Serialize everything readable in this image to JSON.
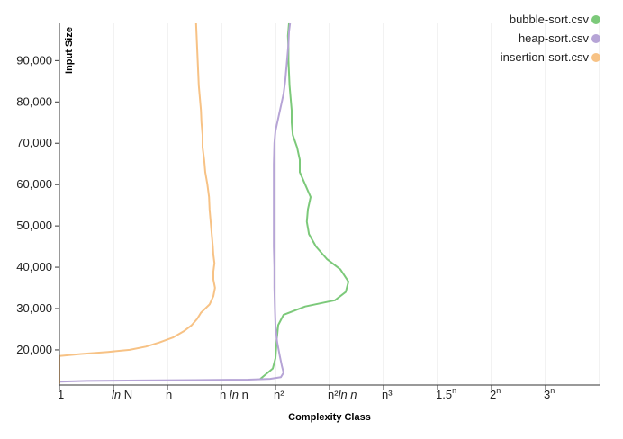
{
  "chart_data": {
    "type": "line",
    "xlabel": "Complexity Class",
    "ylabel": "Input Size",
    "x_categories": [
      {
        "pre": "",
        "em": "",
        "post": "1",
        "sup": ""
      },
      {
        "pre": "",
        "em": "ln",
        "post": " N",
        "sup": ""
      },
      {
        "pre": "",
        "em": "",
        "post": "n",
        "sup": ""
      },
      {
        "pre": "n ",
        "em": "ln",
        "post": " n",
        "sup": ""
      },
      {
        "pre": "",
        "em": "",
        "post": "n²",
        "sup": ""
      },
      {
        "pre": "n²",
        "em": "ln n",
        "post": "",
        "sup": ""
      },
      {
        "pre": "",
        "em": "",
        "post": "n³",
        "sup": ""
      },
      {
        "pre": "",
        "em": "",
        "post": "1.5",
        "sup": "n"
      },
      {
        "pre": "",
        "em": "",
        "post": "2",
        "sup": "n"
      },
      {
        "pre": "",
        "em": "",
        "post": "3",
        "sup": "n"
      }
    ],
    "x_domain": [
      0,
      10
    ],
    "ylim": [
      11500,
      99000
    ],
    "y_ticks": [
      20000,
      30000,
      40000,
      50000,
      60000,
      70000,
      80000,
      90000
    ],
    "y_tick_labels": [
      "20,000",
      "30,000",
      "40,000",
      "50,000",
      "60,000",
      "70,000",
      "80,000",
      "90,000"
    ],
    "grid": "vertical",
    "legend_position": "top-right",
    "series": [
      {
        "name": "bubble-sort.csv",
        "color": "#7cc97a",
        "points": [
          [
            3.72,
            13000
          ],
          [
            3.95,
            15500
          ],
          [
            4.0,
            18000
          ],
          [
            4.02,
            22000
          ],
          [
            4.05,
            26000
          ],
          [
            4.15,
            28500
          ],
          [
            4.55,
            30500
          ],
          [
            5.1,
            32000
          ],
          [
            5.3,
            34000
          ],
          [
            5.35,
            36500
          ],
          [
            5.2,
            39500
          ],
          [
            4.95,
            42000
          ],
          [
            4.75,
            45000
          ],
          [
            4.62,
            48000
          ],
          [
            4.58,
            51000
          ],
          [
            4.6,
            54000
          ],
          [
            4.65,
            57000
          ],
          [
            4.55,
            60000
          ],
          [
            4.45,
            63000
          ],
          [
            4.45,
            66000
          ],
          [
            4.4,
            69000
          ],
          [
            4.32,
            72000
          ],
          [
            4.3,
            75000
          ],
          [
            4.3,
            78000
          ],
          [
            4.28,
            81000
          ],
          [
            4.26,
            84000
          ],
          [
            4.25,
            87000
          ],
          [
            4.24,
            90000
          ],
          [
            4.24,
            93000
          ],
          [
            4.23,
            96000
          ],
          [
            4.25,
            99000
          ]
        ]
      },
      {
        "name": "heap-sort.csv",
        "color": "#b6a4d6",
        "points": [
          [
            0.0,
            12300
          ],
          [
            0.5,
            12500
          ],
          [
            1.5,
            12600
          ],
          [
            2.5,
            12700
          ],
          [
            3.5,
            12800
          ],
          [
            3.9,
            13000
          ],
          [
            4.1,
            13400
          ],
          [
            4.15,
            14500
          ],
          [
            4.12,
            16000
          ],
          [
            4.08,
            18500
          ],
          [
            4.03,
            22000
          ],
          [
            4.0,
            26000
          ],
          [
            3.99,
            30000
          ],
          [
            3.98,
            35000
          ],
          [
            3.98,
            40000
          ],
          [
            3.97,
            45000
          ],
          [
            3.97,
            50000
          ],
          [
            3.97,
            55000
          ],
          [
            3.97,
            60000
          ],
          [
            3.97,
            65000
          ],
          [
            3.98,
            70000
          ],
          [
            4.0,
            73000
          ],
          [
            4.05,
            76000
          ],
          [
            4.1,
            79000
          ],
          [
            4.15,
            82000
          ],
          [
            4.18,
            85000
          ],
          [
            4.2,
            88000
          ],
          [
            4.22,
            91000
          ],
          [
            4.24,
            94000
          ],
          [
            4.25,
            97000
          ],
          [
            4.27,
            99000
          ]
        ]
      },
      {
        "name": "insertion-sort.csv",
        "color": "#f7c285",
        "points": [
          [
            0.0,
            11800
          ],
          [
            0.0,
            18500
          ],
          [
            0.4,
            19000
          ],
          [
            0.9,
            19500
          ],
          [
            1.3,
            20000
          ],
          [
            1.6,
            20800
          ],
          [
            1.85,
            21800
          ],
          [
            2.1,
            23000
          ],
          [
            2.3,
            24500
          ],
          [
            2.45,
            26000
          ],
          [
            2.55,
            27500
          ],
          [
            2.62,
            29000
          ],
          [
            2.78,
            31000
          ],
          [
            2.85,
            33000
          ],
          [
            2.88,
            35000
          ],
          [
            2.85,
            37000
          ],
          [
            2.85,
            39000
          ],
          [
            2.87,
            41000
          ],
          [
            2.85,
            43000
          ],
          [
            2.84,
            45000
          ],
          [
            2.82,
            48000
          ],
          [
            2.8,
            51000
          ],
          [
            2.78,
            54000
          ],
          [
            2.77,
            57000
          ],
          [
            2.74,
            60000
          ],
          [
            2.7,
            63000
          ],
          [
            2.68,
            66000
          ],
          [
            2.65,
            69000
          ],
          [
            2.65,
            72000
          ],
          [
            2.63,
            75000
          ],
          [
            2.62,
            78000
          ],
          [
            2.6,
            81000
          ],
          [
            2.58,
            84000
          ],
          [
            2.57,
            87000
          ],
          [
            2.56,
            90000
          ],
          [
            2.55,
            93000
          ],
          [
            2.54,
            96000
          ],
          [
            2.53,
            99000
          ]
        ]
      }
    ]
  }
}
